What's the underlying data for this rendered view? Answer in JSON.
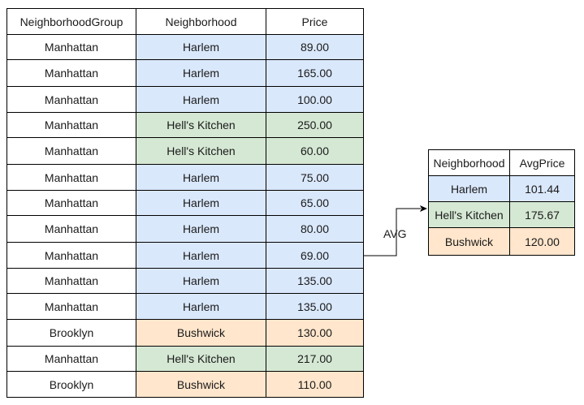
{
  "source_table": {
    "headers": [
      "NeighborhoodGroup",
      "Neighborhood",
      "Price"
    ],
    "rows": [
      {
        "group": "Manhattan",
        "neighborhood": "Harlem",
        "price": "89.00",
        "color": "#dae8fc"
      },
      {
        "group": "Manhattan",
        "neighborhood": "Harlem",
        "price": "165.00",
        "color": "#dae8fc"
      },
      {
        "group": "Manhattan",
        "neighborhood": "Harlem",
        "price": "100.00",
        "color": "#dae8fc"
      },
      {
        "group": "Manhattan",
        "neighborhood": "Hell's Kitchen",
        "price": "250.00",
        "color": "#d5e8d4"
      },
      {
        "group": "Manhattan",
        "neighborhood": "Hell's Kitchen",
        "price": "60.00",
        "color": "#d5e8d4"
      },
      {
        "group": "Manhattan",
        "neighborhood": "Harlem",
        "price": "75.00",
        "color": "#dae8fc"
      },
      {
        "group": "Manhattan",
        "neighborhood": "Harlem",
        "price": "65.00",
        "color": "#dae8fc"
      },
      {
        "group": "Manhattan",
        "neighborhood": "Harlem",
        "price": "80.00",
        "color": "#dae8fc"
      },
      {
        "group": "Manhattan",
        "neighborhood": "Harlem",
        "price": "69.00",
        "color": "#dae8fc"
      },
      {
        "group": "Manhattan",
        "neighborhood": "Harlem",
        "price": "135.00",
        "color": "#dae8fc"
      },
      {
        "group": "Manhattan",
        "neighborhood": "Harlem",
        "price": "135.00",
        "color": "#dae8fc"
      },
      {
        "group": "Brooklyn",
        "neighborhood": "Bushwick",
        "price": "130.00",
        "color": "#ffe6cc"
      },
      {
        "group": "Manhattan",
        "neighborhood": "Hell's Kitchen",
        "price": "217.00",
        "color": "#d5e8d4"
      },
      {
        "group": "Brooklyn",
        "neighborhood": "Bushwick",
        "price": "110.00",
        "color": "#ffe6cc"
      }
    ]
  },
  "connector": {
    "label": "AVG"
  },
  "result_table": {
    "headers": [
      "Neighborhood",
      "AvgPrice"
    ],
    "rows": [
      {
        "neighborhood": "Harlem",
        "avg": "101.44",
        "color": "#dae8fc"
      },
      {
        "neighborhood": "Hell's Kitchen",
        "avg": "175.67",
        "color": "#d5e8d4"
      },
      {
        "neighborhood": "Bushwick",
        "avg": "120.00",
        "color": "#ffe6cc"
      }
    ]
  }
}
